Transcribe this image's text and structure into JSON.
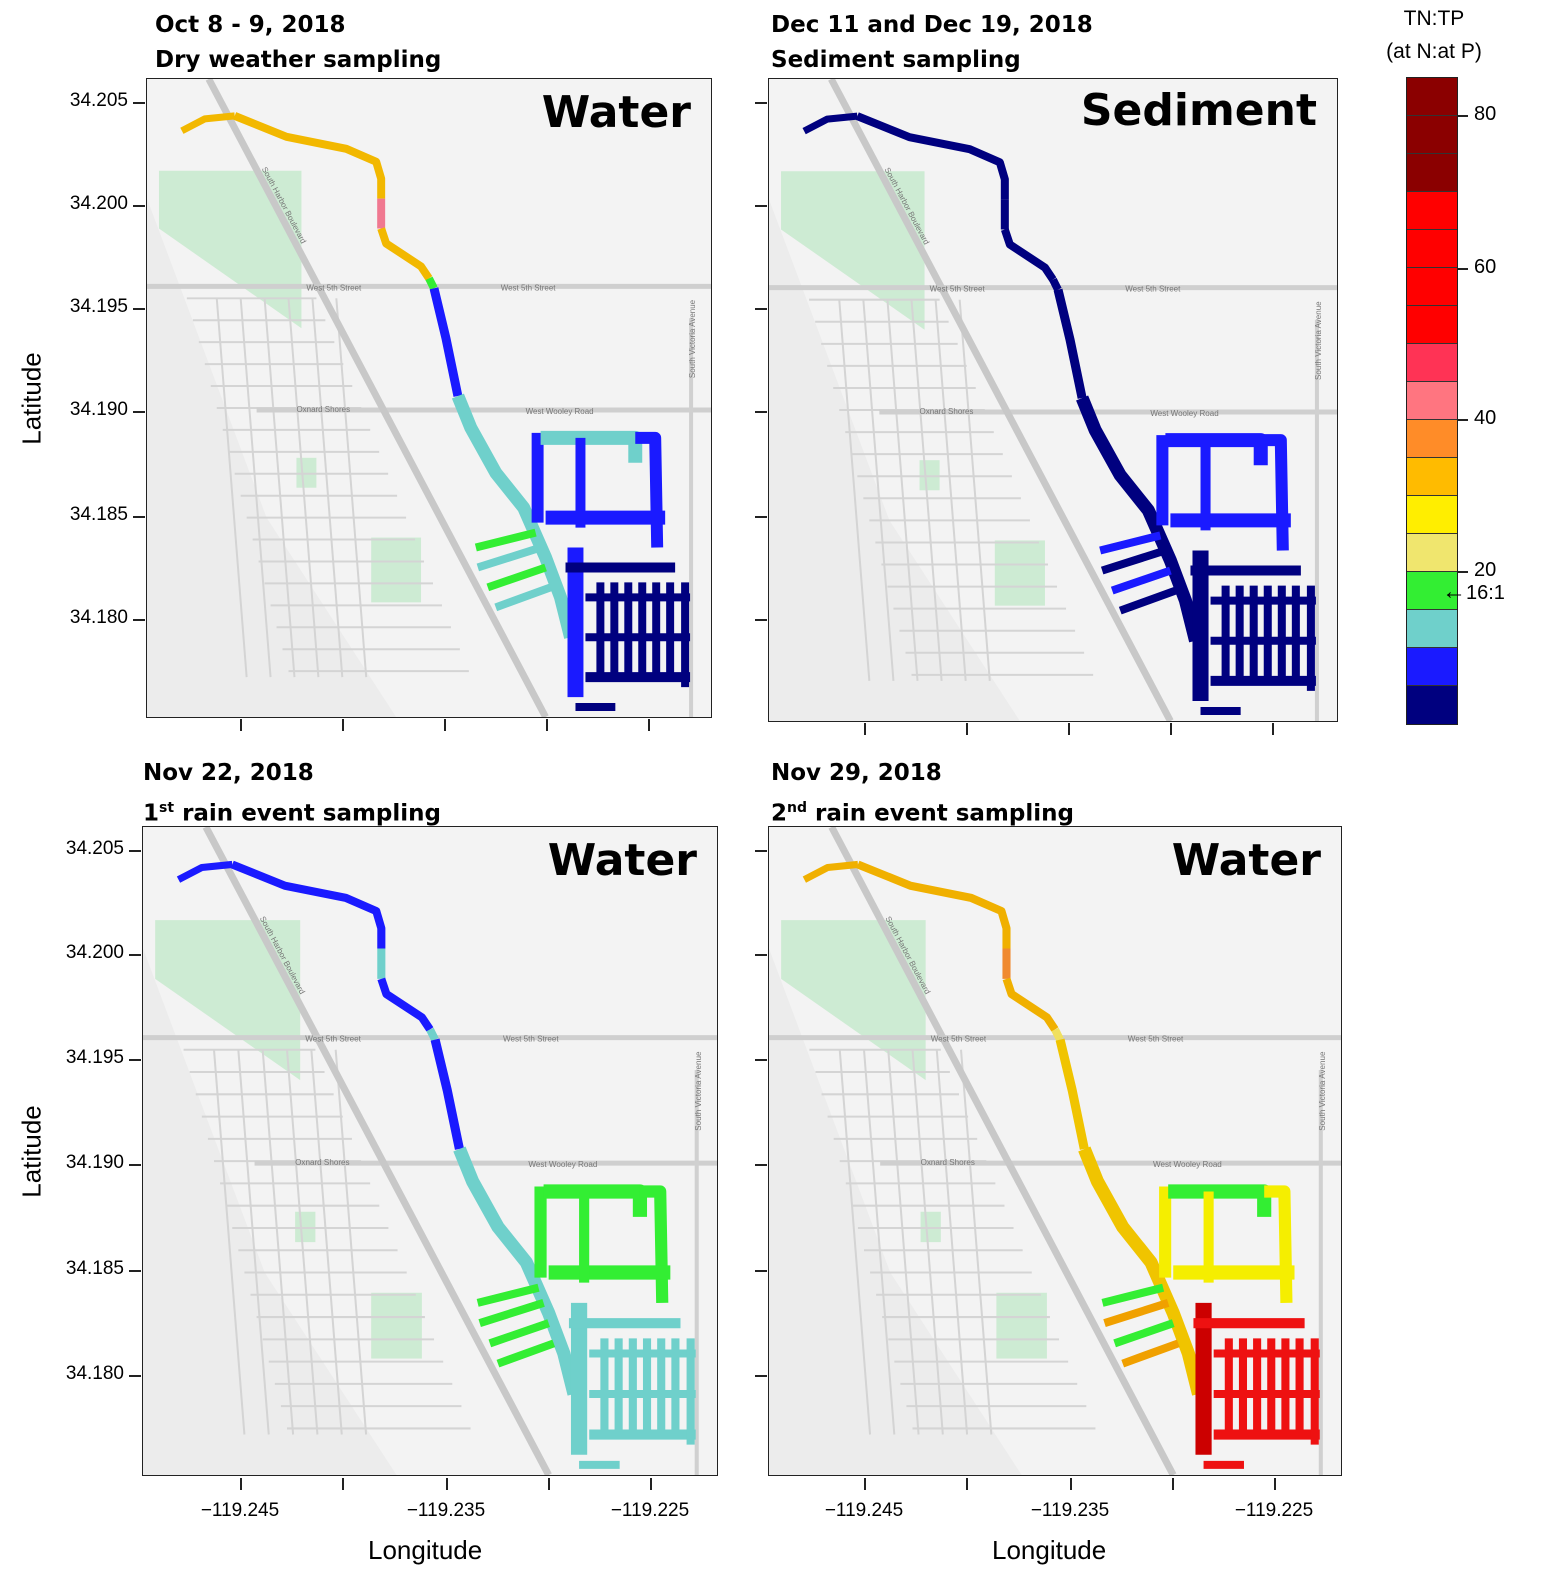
{
  "panels": [
    {
      "id": "p1",
      "title_line1": "Oct 8 - 9, 2018",
      "title_line2": "Dry weather sampling",
      "medium": "Water",
      "segment_colors": {
        "canal_nw": "#f2b800",
        "canal_mid": "#f0c400",
        "canal_pink": "#f07890",
        "canal_lower": "#1a1aff",
        "canal_green": "#33ee33",
        "canal_teal": "#6fd0cb",
        "marina_loop": "#1a1aff",
        "marina_loop_nw": "#6fd0cb",
        "fingers_w": "#6fd0cb",
        "fingers_w_tips": "#33ee33",
        "south_grid": "#00007f",
        "south_grid_w": "#1a1aff"
      }
    },
    {
      "id": "p2",
      "title_line1": "Dec 11 and Dec 19, 2018",
      "title_line2": "Sediment sampling",
      "medium": "Sediment",
      "segment_colors": {
        "canal_nw": "#00007f",
        "canal_mid": "#00007f",
        "canal_pink": "#00007f",
        "canal_lower": "#00007f",
        "canal_green": "#00007f",
        "canal_teal": "#00007f",
        "marina_loop": "#1a1aff",
        "marina_loop_nw": "#1a1aff",
        "fingers_w": "#00007f",
        "fingers_w_tips": "#1a1aff",
        "south_grid": "#00007f",
        "south_grid_w": "#00007f"
      }
    },
    {
      "id": "p3",
      "title_line1": "Nov 22, 2018",
      "title_line2_sup": "st",
      "title_line2_prefix": "1",
      "title_line2": "rain event sampling",
      "medium": "Water",
      "segment_colors": {
        "canal_nw": "#1a1aff",
        "canal_mid": "#1a1aff",
        "canal_pink": "#6fd0cb",
        "canal_lower": "#1a1aff",
        "canal_green": "#6fd0cb",
        "canal_teal": "#6fd0cb",
        "marina_loop": "#33ee33",
        "marina_loop_nw": "#33ee33",
        "fingers_w": "#33ee33",
        "fingers_w_tips": "#33ee33",
        "south_grid": "#6fd0cb",
        "south_grid_w": "#6fd0cb"
      }
    },
    {
      "id": "p4",
      "title_line1": "Nov 29, 2018",
      "title_line2_sup": "nd",
      "title_line2_prefix": "2",
      "title_line2": "rain event sampling",
      "medium": "Water",
      "segment_colors": {
        "canal_nw": "#f0b000",
        "canal_mid": "#e84060",
        "canal_pink": "#f08a30",
        "canal_lower": "#f0c400",
        "canal_green": "#f0e060",
        "canal_teal": "#f0c400",
        "marina_loop": "#f5ee00",
        "marina_loop_nw": "#33ee33",
        "fingers_w": "#f0a000",
        "fingers_w_tips": "#33ee33",
        "south_grid": "#ee1111",
        "south_grid_w": "#cc0000"
      }
    }
  ],
  "axes": {
    "ylabel": "Latitude",
    "xlabel": "Longitude",
    "yticks": [
      "34.205",
      "34.200",
      "34.195",
      "34.190",
      "34.185",
      "34.180"
    ],
    "xticks": [
      "−119.245",
      "−119.235",
      "−119.225"
    ]
  },
  "legend": {
    "title_line1": "TN:TP",
    "title_line2": "(at N:at P)",
    "colors": [
      "#8b0000",
      "#8b0000",
      "#8b0000",
      "#ff0000",
      "#ff0000",
      "#ff0000",
      "#ff0000",
      "#ff3355",
      "#ff7580",
      "#ff8c28",
      "#ffbb00",
      "#ffee00",
      "#f0e66e",
      "#33ee33",
      "#6fd0cb",
      "#1a1aff",
      "#00007f"
    ],
    "ticks": [
      "80",
      "60",
      "40",
      "20"
    ],
    "reference_label": "16:1",
    "reference_arrow": "←"
  },
  "map_labels": [
    "West 5th Street",
    "West Wooley Road",
    "Oxnard Shores",
    "South Harbor Boulevard",
    "South Victoria Avenue"
  ]
}
